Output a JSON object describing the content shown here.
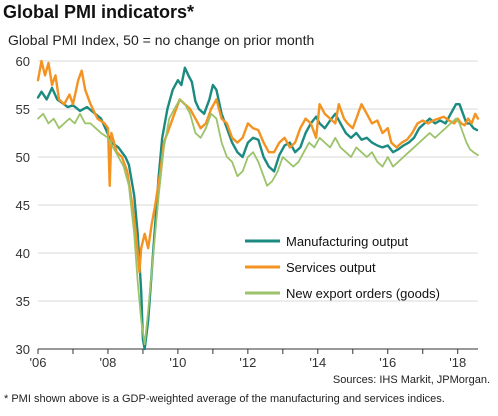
{
  "header": {
    "title": "Global PMI indicators*",
    "subtitle": "Global PMI Index, 50 = no change on prior month"
  },
  "footer": {
    "source": "Sources: IHS Markit, JPMorgan.",
    "footnote": "* PMI shown above is a GDP-weighted average of the manufacturing and services indices."
  },
  "chart_data": {
    "type": "line",
    "title": "Global PMI indicators*",
    "subtitle": "Global PMI Index, 50 = no change on prior month",
    "xlabel": "",
    "ylabel": "",
    "xlim": [
      2006.0,
      2018.58
    ],
    "ylim": [
      30,
      60
    ],
    "y_ticks": [
      30,
      35,
      40,
      45,
      50,
      55,
      60
    ],
    "x_ticks": [
      {
        "value": 2006,
        "label": "'06"
      },
      {
        "value": 2008,
        "label": "'08"
      },
      {
        "value": 2010,
        "label": "'10"
      },
      {
        "value": 2012,
        "label": "'12"
      },
      {
        "value": 2014,
        "label": "'14"
      },
      {
        "value": 2016,
        "label": "'16"
      },
      {
        "value": 2018,
        "label": "'18"
      }
    ],
    "grid": "horizontal",
    "legend_position": "bottom-right",
    "series": [
      {
        "name": "Manufacturing output",
        "color": "#1b8a80",
        "points": [
          [
            2006.0,
            56.2
          ],
          [
            2006.1,
            56.8
          ],
          [
            2006.25,
            56.0
          ],
          [
            2006.4,
            57.2
          ],
          [
            2006.55,
            56.0
          ],
          [
            2006.7,
            55.6
          ],
          [
            2006.85,
            55.2
          ],
          [
            2007.0,
            55.4
          ],
          [
            2007.2,
            54.8
          ],
          [
            2007.4,
            55.2
          ],
          [
            2007.6,
            54.6
          ],
          [
            2007.8,
            54.0
          ],
          [
            2007.95,
            52.8
          ],
          [
            2008.1,
            51.5
          ],
          [
            2008.3,
            51.0
          ],
          [
            2008.5,
            50.0
          ],
          [
            2008.6,
            49.2
          ],
          [
            2008.75,
            46.0
          ],
          [
            2008.85,
            42.0
          ],
          [
            2008.95,
            36.0
          ],
          [
            2009.0,
            31.0
          ],
          [
            2009.05,
            30.0
          ],
          [
            2009.15,
            33.0
          ],
          [
            2009.25,
            38.0
          ],
          [
            2009.35,
            43.0
          ],
          [
            2009.45,
            48.0
          ],
          [
            2009.55,
            52.0
          ],
          [
            2009.7,
            55.0
          ],
          [
            2009.85,
            57.0
          ],
          [
            2010.0,
            58.0
          ],
          [
            2010.1,
            57.5
          ],
          [
            2010.2,
            59.3
          ],
          [
            2010.3,
            58.5
          ],
          [
            2010.4,
            57.8
          ],
          [
            2010.5,
            55.8
          ],
          [
            2010.6,
            55.0
          ],
          [
            2010.75,
            54.5
          ],
          [
            2010.9,
            56.0
          ],
          [
            2011.0,
            57.5
          ],
          [
            2011.1,
            57.0
          ],
          [
            2011.25,
            54.5
          ],
          [
            2011.4,
            53.0
          ],
          [
            2011.55,
            51.5
          ],
          [
            2011.7,
            50.5
          ],
          [
            2011.85,
            50.0
          ],
          [
            2012.0,
            51.5
          ],
          [
            2012.15,
            52.0
          ],
          [
            2012.3,
            51.8
          ],
          [
            2012.45,
            50.0
          ],
          [
            2012.6,
            49.0
          ],
          [
            2012.75,
            48.5
          ],
          [
            2012.9,
            50.2
          ],
          [
            2013.05,
            51.2
          ],
          [
            2013.2,
            51.5
          ],
          [
            2013.35,
            50.5
          ],
          [
            2013.5,
            51.0
          ],
          [
            2013.65,
            52.5
          ],
          [
            2013.8,
            53.5
          ],
          [
            2013.95,
            54.2
          ],
          [
            2014.05,
            53.5
          ],
          [
            2014.2,
            53.0
          ],
          [
            2014.35,
            53.8
          ],
          [
            2014.5,
            54.5
          ],
          [
            2014.65,
            53.5
          ],
          [
            2014.8,
            52.5
          ],
          [
            2014.95,
            52.0
          ],
          [
            2015.1,
            52.5
          ],
          [
            2015.25,
            51.8
          ],
          [
            2015.4,
            52.0
          ],
          [
            2015.55,
            51.5
          ],
          [
            2015.7,
            51.2
          ],
          [
            2015.85,
            51.0
          ],
          [
            2016.0,
            51.2
          ],
          [
            2016.15,
            50.5
          ],
          [
            2016.3,
            50.8
          ],
          [
            2016.45,
            51.2
          ],
          [
            2016.6,
            51.5
          ],
          [
            2016.75,
            52.0
          ],
          [
            2016.9,
            53.0
          ],
          [
            2017.05,
            53.5
          ],
          [
            2017.2,
            54.0
          ],
          [
            2017.35,
            53.5
          ],
          [
            2017.5,
            53.8
          ],
          [
            2017.65,
            53.5
          ],
          [
            2017.8,
            54.5
          ],
          [
            2017.95,
            55.5
          ],
          [
            2018.05,
            55.5
          ],
          [
            2018.15,
            54.5
          ],
          [
            2018.25,
            53.5
          ],
          [
            2018.35,
            53.5
          ],
          [
            2018.45,
            53.0
          ],
          [
            2018.55,
            52.8
          ]
        ]
      },
      {
        "name": "Services output",
        "color": "#f39322",
        "points": [
          [
            2006.0,
            58.0
          ],
          [
            2006.1,
            60.0
          ],
          [
            2006.2,
            58.5
          ],
          [
            2006.3,
            59.8
          ],
          [
            2006.4,
            57.5
          ],
          [
            2006.5,
            58.5
          ],
          [
            2006.6,
            56.0
          ],
          [
            2006.75,
            55.5
          ],
          [
            2006.9,
            56.5
          ],
          [
            2007.0,
            55.5
          ],
          [
            2007.15,
            58.0
          ],
          [
            2007.25,
            59.0
          ],
          [
            2007.35,
            57.0
          ],
          [
            2007.5,
            55.5
          ],
          [
            2007.7,
            54.0
          ],
          [
            2007.9,
            53.5
          ],
          [
            2008.0,
            53.0
          ],
          [
            2008.05,
            47.0
          ],
          [
            2008.1,
            52.5
          ],
          [
            2008.25,
            50.5
          ],
          [
            2008.4,
            50.0
          ],
          [
            2008.55,
            48.5
          ],
          [
            2008.7,
            45.0
          ],
          [
            2008.8,
            42.0
          ],
          [
            2008.9,
            38.0
          ],
          [
            2008.95,
            40.5
          ],
          [
            2009.05,
            42.0
          ],
          [
            2009.15,
            40.5
          ],
          [
            2009.25,
            43.0
          ],
          [
            2009.35,
            45.0
          ],
          [
            2009.5,
            48.5
          ],
          [
            2009.6,
            51.5
          ],
          [
            2009.75,
            53.0
          ],
          [
            2009.9,
            54.5
          ],
          [
            2010.05,
            56.0
          ],
          [
            2010.2,
            55.5
          ],
          [
            2010.35,
            55.0
          ],
          [
            2010.5,
            54.0
          ],
          [
            2010.65,
            53.0
          ],
          [
            2010.8,
            53.5
          ],
          [
            2010.95,
            55.0
          ],
          [
            2011.1,
            56.0
          ],
          [
            2011.25,
            54.0
          ],
          [
            2011.4,
            53.5
          ],
          [
            2011.55,
            52.0
          ],
          [
            2011.7,
            51.5
          ],
          [
            2011.85,
            52.0
          ],
          [
            2012.0,
            53.5
          ],
          [
            2012.15,
            53.0
          ],
          [
            2012.3,
            52.8
          ],
          [
            2012.45,
            51.5
          ],
          [
            2012.6,
            50.5
          ],
          [
            2012.75,
            50.5
          ],
          [
            2012.9,
            51.5
          ],
          [
            2013.05,
            52.0
          ],
          [
            2013.2,
            51.0
          ],
          [
            2013.35,
            51.5
          ],
          [
            2013.5,
            53.0
          ],
          [
            2013.65,
            54.0
          ],
          [
            2013.8,
            53.5
          ],
          [
            2013.95,
            52.0
          ],
          [
            2014.05,
            55.5
          ],
          [
            2014.2,
            54.5
          ],
          [
            2014.35,
            54.0
          ],
          [
            2014.5,
            53.5
          ],
          [
            2014.6,
            55.5
          ],
          [
            2014.75,
            54.0
          ],
          [
            2014.85,
            53.5
          ],
          [
            2015.0,
            53.0
          ],
          [
            2015.1,
            54.0
          ],
          [
            2015.25,
            55.5
          ],
          [
            2015.4,
            54.5
          ],
          [
            2015.55,
            53.5
          ],
          [
            2015.7,
            53.8
          ],
          [
            2015.85,
            52.5
          ],
          [
            2016.0,
            53.0
          ],
          [
            2016.1,
            51.5
          ],
          [
            2016.25,
            51.0
          ],
          [
            2016.4,
            51.5
          ],
          [
            2016.55,
            51.8
          ],
          [
            2016.7,
            52.5
          ],
          [
            2016.85,
            53.5
          ],
          [
            2017.0,
            53.8
          ],
          [
            2017.15,
            53.5
          ],
          [
            2017.3,
            53.8
          ],
          [
            2017.45,
            54.0
          ],
          [
            2017.6,
            54.2
          ],
          [
            2017.75,
            53.8
          ],
          [
            2017.9,
            53.5
          ],
          [
            2018.0,
            54.0
          ],
          [
            2018.1,
            53.5
          ],
          [
            2018.2,
            53.3
          ],
          [
            2018.3,
            54.0
          ],
          [
            2018.4,
            53.5
          ],
          [
            2018.5,
            54.5
          ],
          [
            2018.58,
            54.0
          ]
        ]
      },
      {
        "name": "New export orders (goods)",
        "color": "#9bc36a",
        "points": [
          [
            2006.0,
            54.0
          ],
          [
            2006.15,
            54.5
          ],
          [
            2006.3,
            53.5
          ],
          [
            2006.45,
            54.0
          ],
          [
            2006.6,
            53.0
          ],
          [
            2006.75,
            53.5
          ],
          [
            2006.9,
            54.0
          ],
          [
            2007.05,
            53.5
          ],
          [
            2007.2,
            54.5
          ],
          [
            2007.35,
            53.5
          ],
          [
            2007.5,
            53.5
          ],
          [
            2007.65,
            53.0
          ],
          [
            2007.8,
            52.5
          ],
          [
            2008.0,
            52.0
          ],
          [
            2008.15,
            51.0
          ],
          [
            2008.3,
            50.0
          ],
          [
            2008.45,
            49.0
          ],
          [
            2008.6,
            47.0
          ],
          [
            2008.75,
            42.0
          ],
          [
            2008.85,
            37.0
          ],
          [
            2008.95,
            33.0
          ],
          [
            2009.05,
            30.5
          ],
          [
            2009.15,
            34.0
          ],
          [
            2009.3,
            40.0
          ],
          [
            2009.45,
            46.0
          ],
          [
            2009.6,
            51.0
          ],
          [
            2009.75,
            54.0
          ],
          [
            2009.9,
            55.0
          ],
          [
            2010.05,
            56.0
          ],
          [
            2010.2,
            55.5
          ],
          [
            2010.35,
            54.5
          ],
          [
            2010.5,
            52.5
          ],
          [
            2010.65,
            52.0
          ],
          [
            2010.8,
            53.0
          ],
          [
            2010.95,
            54.5
          ],
          [
            2011.1,
            54.0
          ],
          [
            2011.25,
            51.5
          ],
          [
            2011.4,
            50.0
          ],
          [
            2011.55,
            49.5
          ],
          [
            2011.7,
            48.0
          ],
          [
            2011.85,
            48.5
          ],
          [
            2012.0,
            50.0
          ],
          [
            2012.15,
            50.5
          ],
          [
            2012.3,
            49.5
          ],
          [
            2012.45,
            48.0
          ],
          [
            2012.55,
            47.0
          ],
          [
            2012.7,
            47.5
          ],
          [
            2012.85,
            48.5
          ],
          [
            2013.0,
            50.0
          ],
          [
            2013.15,
            49.5
          ],
          [
            2013.3,
            49.0
          ],
          [
            2013.45,
            49.5
          ],
          [
            2013.6,
            50.5
          ],
          [
            2013.75,
            51.5
          ],
          [
            2013.9,
            51.0
          ],
          [
            2014.05,
            52.0
          ],
          [
            2014.2,
            51.5
          ],
          [
            2014.35,
            51.0
          ],
          [
            2014.5,
            52.0
          ],
          [
            2014.65,
            51.0
          ],
          [
            2014.8,
            50.5
          ],
          [
            2014.95,
            50.0
          ],
          [
            2015.1,
            51.0
          ],
          [
            2015.25,
            50.5
          ],
          [
            2015.4,
            50.0
          ],
          [
            2015.55,
            50.5
          ],
          [
            2015.7,
            49.5
          ],
          [
            2015.85,
            49.0
          ],
          [
            2016.0,
            50.0
          ],
          [
            2016.15,
            49.0
          ],
          [
            2016.3,
            49.5
          ],
          [
            2016.45,
            50.0
          ],
          [
            2016.6,
            50.5
          ],
          [
            2016.75,
            51.0
          ],
          [
            2016.9,
            51.5
          ],
          [
            2017.05,
            52.0
          ],
          [
            2017.2,
            52.5
          ],
          [
            2017.35,
            52.0
          ],
          [
            2017.5,
            52.5
          ],
          [
            2017.65,
            53.0
          ],
          [
            2017.8,
            53.5
          ],
          [
            2017.95,
            54.0
          ],
          [
            2018.05,
            53.5
          ],
          [
            2018.15,
            52.5
          ],
          [
            2018.25,
            51.5
          ],
          [
            2018.35,
            50.8
          ],
          [
            2018.45,
            50.5
          ],
          [
            2018.58,
            50.2
          ]
        ]
      }
    ]
  }
}
